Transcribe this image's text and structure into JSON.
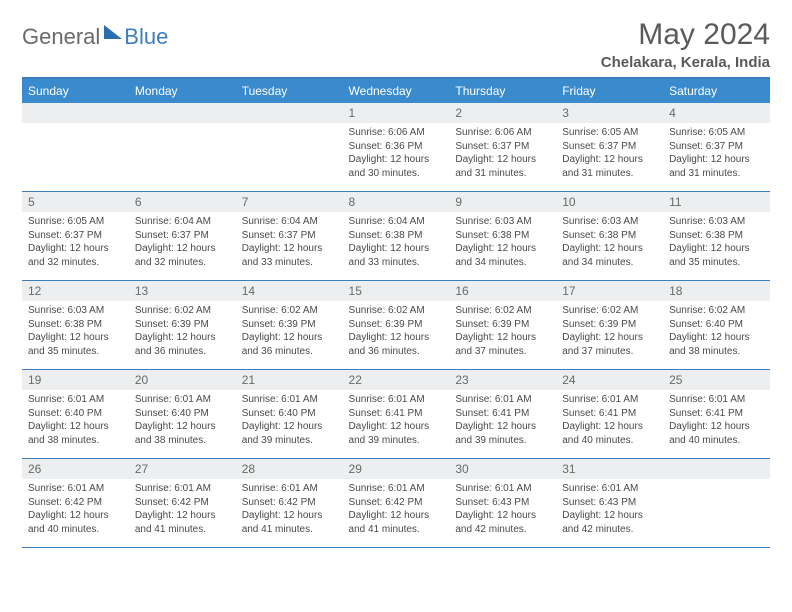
{
  "logo": {
    "general": "General",
    "blue": "Blue"
  },
  "title": "May 2024",
  "location": "Chelakara, Kerala, India",
  "colors": {
    "header_bg": "#3a8bce",
    "rule": "#3a7ebf",
    "daynum_bg": "#eceeef",
    "text_muted": "#6a6a6a"
  },
  "weekdays": [
    "Sunday",
    "Monday",
    "Tuesday",
    "Wednesday",
    "Thursday",
    "Friday",
    "Saturday"
  ],
  "weeks": [
    [
      null,
      null,
      null,
      {
        "n": "1",
        "sr": "6:06 AM",
        "ss": "6:36 PM",
        "dl": "12 hours and 30 minutes."
      },
      {
        "n": "2",
        "sr": "6:06 AM",
        "ss": "6:37 PM",
        "dl": "12 hours and 31 minutes."
      },
      {
        "n": "3",
        "sr": "6:05 AM",
        "ss": "6:37 PM",
        "dl": "12 hours and 31 minutes."
      },
      {
        "n": "4",
        "sr": "6:05 AM",
        "ss": "6:37 PM",
        "dl": "12 hours and 31 minutes."
      }
    ],
    [
      {
        "n": "5",
        "sr": "6:05 AM",
        "ss": "6:37 PM",
        "dl": "12 hours and 32 minutes."
      },
      {
        "n": "6",
        "sr": "6:04 AM",
        "ss": "6:37 PM",
        "dl": "12 hours and 32 minutes."
      },
      {
        "n": "7",
        "sr": "6:04 AM",
        "ss": "6:37 PM",
        "dl": "12 hours and 33 minutes."
      },
      {
        "n": "8",
        "sr": "6:04 AM",
        "ss": "6:38 PM",
        "dl": "12 hours and 33 minutes."
      },
      {
        "n": "9",
        "sr": "6:03 AM",
        "ss": "6:38 PM",
        "dl": "12 hours and 34 minutes."
      },
      {
        "n": "10",
        "sr": "6:03 AM",
        "ss": "6:38 PM",
        "dl": "12 hours and 34 minutes."
      },
      {
        "n": "11",
        "sr": "6:03 AM",
        "ss": "6:38 PM",
        "dl": "12 hours and 35 minutes."
      }
    ],
    [
      {
        "n": "12",
        "sr": "6:03 AM",
        "ss": "6:38 PM",
        "dl": "12 hours and 35 minutes."
      },
      {
        "n": "13",
        "sr": "6:02 AM",
        "ss": "6:39 PM",
        "dl": "12 hours and 36 minutes."
      },
      {
        "n": "14",
        "sr": "6:02 AM",
        "ss": "6:39 PM",
        "dl": "12 hours and 36 minutes."
      },
      {
        "n": "15",
        "sr": "6:02 AM",
        "ss": "6:39 PM",
        "dl": "12 hours and 36 minutes."
      },
      {
        "n": "16",
        "sr": "6:02 AM",
        "ss": "6:39 PM",
        "dl": "12 hours and 37 minutes."
      },
      {
        "n": "17",
        "sr": "6:02 AM",
        "ss": "6:39 PM",
        "dl": "12 hours and 37 minutes."
      },
      {
        "n": "18",
        "sr": "6:02 AM",
        "ss": "6:40 PM",
        "dl": "12 hours and 38 minutes."
      }
    ],
    [
      {
        "n": "19",
        "sr": "6:01 AM",
        "ss": "6:40 PM",
        "dl": "12 hours and 38 minutes."
      },
      {
        "n": "20",
        "sr": "6:01 AM",
        "ss": "6:40 PM",
        "dl": "12 hours and 38 minutes."
      },
      {
        "n": "21",
        "sr": "6:01 AM",
        "ss": "6:40 PM",
        "dl": "12 hours and 39 minutes."
      },
      {
        "n": "22",
        "sr": "6:01 AM",
        "ss": "6:41 PM",
        "dl": "12 hours and 39 minutes."
      },
      {
        "n": "23",
        "sr": "6:01 AM",
        "ss": "6:41 PM",
        "dl": "12 hours and 39 minutes."
      },
      {
        "n": "24",
        "sr": "6:01 AM",
        "ss": "6:41 PM",
        "dl": "12 hours and 40 minutes."
      },
      {
        "n": "25",
        "sr": "6:01 AM",
        "ss": "6:41 PM",
        "dl": "12 hours and 40 minutes."
      }
    ],
    [
      {
        "n": "26",
        "sr": "6:01 AM",
        "ss": "6:42 PM",
        "dl": "12 hours and 40 minutes."
      },
      {
        "n": "27",
        "sr": "6:01 AM",
        "ss": "6:42 PM",
        "dl": "12 hours and 41 minutes."
      },
      {
        "n": "28",
        "sr": "6:01 AM",
        "ss": "6:42 PM",
        "dl": "12 hours and 41 minutes."
      },
      {
        "n": "29",
        "sr": "6:01 AM",
        "ss": "6:42 PM",
        "dl": "12 hours and 41 minutes."
      },
      {
        "n": "30",
        "sr": "6:01 AM",
        "ss": "6:43 PM",
        "dl": "12 hours and 42 minutes."
      },
      {
        "n": "31",
        "sr": "6:01 AM",
        "ss": "6:43 PM",
        "dl": "12 hours and 42 minutes."
      },
      null
    ]
  ],
  "labels": {
    "sunrise": "Sunrise: ",
    "sunset": "Sunset: ",
    "daylight": "Daylight: "
  }
}
